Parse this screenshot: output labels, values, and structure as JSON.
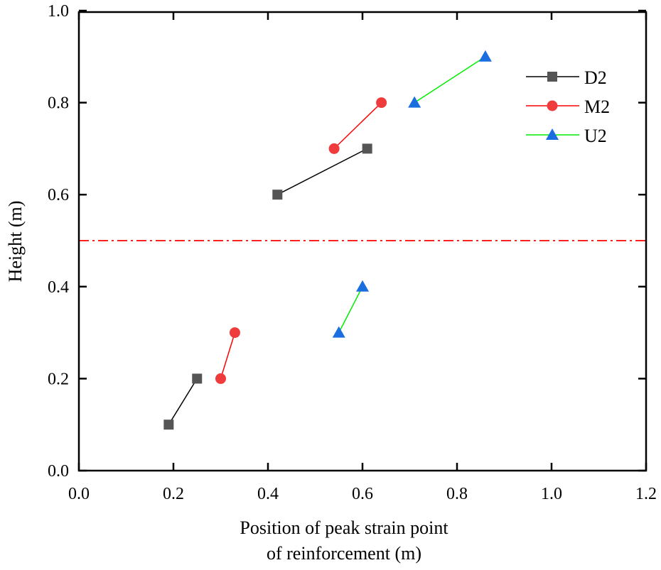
{
  "chart_data": {
    "type": "line",
    "xlabel": [
      "Position of peak strain point",
      "of reinforcement (m)"
    ],
    "ylabel": "Height (m)",
    "xlim": [
      0.0,
      1.2
    ],
    "ylim": [
      0.0,
      1.0
    ],
    "xticks": [
      "0.0",
      "0.2",
      "0.4",
      "0.6",
      "0.8",
      "1.0",
      "1.2"
    ],
    "yticks": [
      "0.0",
      "0.2",
      "0.4",
      "0.6",
      "0.8",
      "1.0"
    ],
    "grid": false,
    "legend_placement": "top-right",
    "reference_line": {
      "y": 0.5,
      "style": "dash-dot",
      "color": "#ff0000"
    },
    "series": [
      {
        "name": "D2",
        "marker": "square",
        "marker_color": "#555555",
        "line_color": "#000000",
        "segments": [
          [
            [
              0.19,
              0.1
            ],
            [
              0.25,
              0.2
            ]
          ],
          [
            [
              0.42,
              0.6
            ],
            [
              0.61,
              0.7
            ]
          ]
        ]
      },
      {
        "name": "M2",
        "marker": "circle",
        "marker_color": "#ef3b3b",
        "line_color": "#ff0000",
        "segments": [
          [
            [
              0.3,
              0.2
            ],
            [
              0.33,
              0.3
            ]
          ],
          [
            [
              0.54,
              0.7
            ],
            [
              0.64,
              0.8
            ]
          ]
        ]
      },
      {
        "name": "U2",
        "marker": "triangle",
        "marker_color": "#1a6ee0",
        "line_color": "#00ee00",
        "segments": [
          [
            [
              0.55,
              0.3
            ],
            [
              0.6,
              0.4
            ]
          ],
          [
            [
              0.71,
              0.8
            ],
            [
              0.86,
              0.9
            ]
          ]
        ]
      }
    ]
  }
}
